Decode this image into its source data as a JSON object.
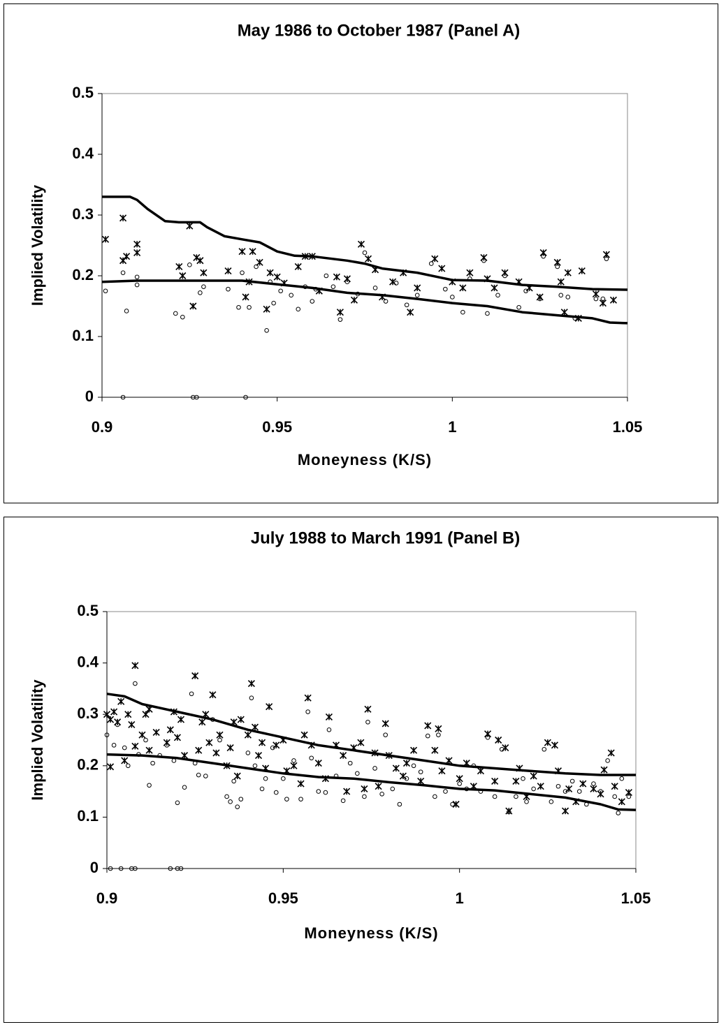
{
  "chart_data": [
    {
      "type": "scatter",
      "title": "May 1986 to October 1987 (Panel A)",
      "xlabel": "Moneyness (K/S)",
      "ylabel": "Implied Volatility",
      "xlim": [
        0.9,
        1.05
      ],
      "ylim": [
        0,
        0.5
      ],
      "xticks": [
        0.9,
        0.95,
        1,
        1.05
      ],
      "yticks": [
        0,
        0.1,
        0.2,
        0.3,
        0.4,
        0.5
      ],
      "series": [
        {
          "style": "asterisk",
          "color": "#000000",
          "x": [
            0.901,
            0.906,
            0.906,
            0.907,
            0.91,
            0.91,
            0.922,
            0.923,
            0.925,
            0.926,
            0.927,
            0.928,
            0.929,
            0.936,
            0.94,
            0.941,
            0.942,
            0.943,
            0.945,
            0.947,
            0.948,
            0.95,
            0.952,
            0.956,
            0.958,
            0.96,
            0.962,
            0.967,
            0.968,
            0.97,
            0.972,
            0.974,
            0.976,
            0.978,
            0.98,
            0.983,
            0.986,
            0.988,
            0.99,
            0.995,
            0.997,
            1.0,
            1.003,
            1.005,
            1.009,
            1.01,
            1.012,
            1.015,
            1.019,
            1.022,
            1.025,
            1.026,
            1.03,
            1.031,
            1.032,
            1.033,
            1.036,
            1.037,
            1.041,
            1.043,
            1.044,
            1.046
          ],
          "values": [
            0.26,
            0.295,
            0.225,
            0.232,
            0.252,
            0.238,
            0.215,
            0.2,
            0.282,
            0.15,
            0.23,
            0.225,
            0.205,
            0.208,
            0.24,
            0.165,
            0.19,
            0.24,
            0.222,
            0.145,
            0.205,
            0.198,
            0.188,
            0.215,
            0.232,
            0.232,
            0.175,
            0.198,
            0.14,
            0.195,
            0.16,
            0.252,
            0.228,
            0.21,
            0.165,
            0.19,
            0.205,
            0.14,
            0.18,
            0.228,
            0.212,
            0.19,
            0.18,
            0.205,
            0.23,
            0.195,
            0.18,
            0.205,
            0.19,
            0.18,
            0.165,
            0.238,
            0.222,
            0.19,
            0.14,
            0.205,
            0.13,
            0.208,
            0.17,
            0.155,
            0.235,
            0.16
          ]
        },
        {
          "style": "circle",
          "color": "#000000",
          "x": [
            0.901,
            0.906,
            0.907,
            0.906,
            0.91,
            0.91,
            0.921,
            0.923,
            0.925,
            0.926,
            0.927,
            0.928,
            0.929,
            0.936,
            0.939,
            0.94,
            0.941,
            0.942,
            0.944,
            0.947,
            0.948,
            0.949,
            0.951,
            0.954,
            0.956,
            0.958,
            0.96,
            0.961,
            0.964,
            0.966,
            0.968,
            0.97,
            0.973,
            0.975,
            0.978,
            0.981,
            0.984,
            0.987,
            0.99,
            0.994,
            0.998,
            1.0,
            1.003,
            1.005,
            1.009,
            1.01,
            1.013,
            1.015,
            1.019,
            1.021,
            1.025,
            1.026,
            1.03,
            1.031,
            1.033,
            1.035,
            1.041,
            1.043,
            1.044
          ],
          "values": [
            0.175,
            0,
            0.142,
            0.205,
            0.185,
            0.198,
            0.138,
            0.132,
            0.218,
            0,
            0,
            0.172,
            0.182,
            0.178,
            0.148,
            0.205,
            0,
            0.148,
            0.215,
            0.11,
            0.19,
            0.155,
            0.175,
            0.168,
            0.145,
            0.182,
            0.158,
            0.178,
            0.2,
            0.182,
            0.128,
            0.19,
            0.17,
            0.238,
            0.18,
            0.158,
            0.188,
            0.152,
            0.168,
            0.22,
            0.178,
            0.165,
            0.14,
            0.195,
            0.225,
            0.138,
            0.168,
            0.2,
            0.148,
            0.175,
            0.162,
            0.232,
            0.215,
            0.168,
            0.165,
            0.13,
            0.162,
            0.162,
            0.228
          ]
        },
        {
          "style": "line",
          "color": "#000000",
          "x": [
            0.9,
            0.908,
            0.91,
            0.913,
            0.918,
            0.922,
            0.928,
            0.93,
            0.935,
            0.94,
            0.945,
            0.95,
            0.955,
            0.96,
            0.97,
            0.975,
            0.98,
            0.99,
            1.0,
            1.01,
            1.02,
            1.03,
            1.04,
            1.05
          ],
          "values": [
            0.33,
            0.33,
            0.325,
            0.31,
            0.29,
            0.288,
            0.288,
            0.28,
            0.265,
            0.26,
            0.255,
            0.24,
            0.233,
            0.232,
            0.225,
            0.22,
            0.212,
            0.205,
            0.193,
            0.192,
            0.185,
            0.182,
            0.178,
            0.177
          ]
        },
        {
          "style": "line",
          "color": "#000000",
          "x": [
            0.9,
            0.91,
            0.94,
            0.96,
            0.97,
            0.98,
            0.99,
            1.0,
            1.01,
            1.02,
            1.03,
            1.04,
            1.045,
            1.05
          ],
          "values": [
            0.19,
            0.192,
            0.192,
            0.18,
            0.172,
            0.168,
            0.162,
            0.155,
            0.15,
            0.14,
            0.135,
            0.13,
            0.123,
            0.122
          ]
        }
      ]
    },
    {
      "type": "scatter",
      "title": "July 1988 to March 1991 (Panel B)",
      "xlabel": "Moneyness (K/S)",
      "ylabel": "Implied Volatility",
      "xlim": [
        0.9,
        1.05
      ],
      "ylim": [
        0,
        0.5
      ],
      "xticks": [
        0.9,
        0.95,
        1,
        1.05
      ],
      "yticks": [
        0,
        0.1,
        0.2,
        0.3,
        0.4,
        0.5
      ],
      "series": [
        {
          "style": "asterisk",
          "color": "#000000",
          "x": [
            0.9,
            0.901,
            0.901,
            0.902,
            0.903,
            0.904,
            0.905,
            0.906,
            0.907,
            0.908,
            0.908,
            0.91,
            0.911,
            0.912,
            0.912,
            0.914,
            0.917,
            0.918,
            0.919,
            0.92,
            0.921,
            0.922,
            0.925,
            0.926,
            0.927,
            0.928,
            0.929,
            0.93,
            0.931,
            0.932,
            0.934,
            0.935,
            0.936,
            0.937,
            0.938,
            0.94,
            0.941,
            0.942,
            0.943,
            0.944,
            0.945,
            0.946,
            0.948,
            0.95,
            0.951,
            0.953,
            0.955,
            0.956,
            0.957,
            0.958,
            0.96,
            0.962,
            0.963,
            0.965,
            0.967,
            0.968,
            0.97,
            0.972,
            0.973,
            0.974,
            0.976,
            0.977,
            0.979,
            0.98,
            0.982,
            0.984,
            0.985,
            0.987,
            0.989,
            0.991,
            0.993,
            0.994,
            0.995,
            0.997,
            0.999,
            1.0,
            1.002,
            1.004,
            1.006,
            1.008,
            1.01,
            1.011,
            1.013,
            1.014,
            1.016,
            1.017,
            1.019,
            1.021,
            1.023,
            1.025,
            1.027,
            1.028,
            1.03,
            1.031,
            1.033,
            1.035,
            1.038,
            1.04,
            1.041,
            1.043,
            1.044,
            1.046,
            1.048
          ],
          "values": [
            0.3,
            0.198,
            0.29,
            0.305,
            0.285,
            0.325,
            0.21,
            0.3,
            0.28,
            0.395,
            0.238,
            0.26,
            0.3,
            0.31,
            0.23,
            0.265,
            0.245,
            0.27,
            0.305,
            0.255,
            0.29,
            0.22,
            0.375,
            0.23,
            0.285,
            0.3,
            0.245,
            0.338,
            0.225,
            0.26,
            0.2,
            0.235,
            0.285,
            0.18,
            0.29,
            0.26,
            0.36,
            0.275,
            0.22,
            0.245,
            0.195,
            0.315,
            0.24,
            0.25,
            0.19,
            0.2,
            0.165,
            0.26,
            0.332,
            0.24,
            0.205,
            0.175,
            0.295,
            0.24,
            0.22,
            0.15,
            0.235,
            0.245,
            0.155,
            0.31,
            0.225,
            0.16,
            0.282,
            0.22,
            0.195,
            0.18,
            0.205,
            0.23,
            0.17,
            0.278,
            0.23,
            0.272,
            0.19,
            0.21,
            0.125,
            0.175,
            0.205,
            0.16,
            0.19,
            0.262,
            0.17,
            0.25,
            0.235,
            0.112,
            0.17,
            0.195,
            0.14,
            0.18,
            0.16,
            0.245,
            0.24,
            0.19,
            0.112,
            0.155,
            0.13,
            0.165,
            0.155,
            0.145,
            0.192,
            0.225,
            0.16,
            0.13,
            0.148
          ]
        },
        {
          "style": "circle",
          "color": "#000000",
          "x": [
            0.9,
            0.901,
            0.902,
            0.903,
            0.904,
            0.905,
            0.906,
            0.907,
            0.908,
            0.908,
            0.909,
            0.911,
            0.912,
            0.913,
            0.915,
            0.917,
            0.918,
            0.919,
            0.92,
            0.92,
            0.921,
            0.922,
            0.924,
            0.925,
            0.926,
            0.928,
            0.93,
            0.932,
            0.934,
            0.935,
            0.936,
            0.937,
            0.938,
            0.94,
            0.941,
            0.942,
            0.944,
            0.945,
            0.947,
            0.948,
            0.95,
            0.951,
            0.953,
            0.955,
            0.957,
            0.958,
            0.96,
            0.962,
            0.963,
            0.965,
            0.967,
            0.969,
            0.971,
            0.973,
            0.974,
            0.976,
            0.978,
            0.979,
            0.981,
            0.983,
            0.985,
            0.987,
            0.989,
            0.991,
            0.993,
            0.994,
            0.996,
            0.998,
            1.0,
            1.002,
            1.004,
            1.006,
            1.008,
            1.01,
            1.012,
            1.014,
            1.016,
            1.018,
            1.019,
            1.021,
            1.024,
            1.026,
            1.028,
            1.03,
            1.032,
            1.034,
            1.036,
            1.038,
            1.04,
            1.042,
            1.044,
            1.045,
            1.046,
            1.048
          ],
          "values": [
            0.26,
            0,
            0.24,
            0.28,
            0,
            0.235,
            0.2,
            0,
            0.36,
            0,
            0.222,
            0.25,
            0.162,
            0.205,
            0.22,
            0.24,
            0,
            0.21,
            0,
            0.128,
            0,
            0.158,
            0.34,
            0.205,
            0.182,
            0.18,
            0.29,
            0.25,
            0.14,
            0.13,
            0.17,
            0.12,
            0.135,
            0.225,
            0.332,
            0.2,
            0.155,
            0.175,
            0.235,
            0.148,
            0.175,
            0.135,
            0.21,
            0.135,
            0.305,
            0.215,
            0.15,
            0.148,
            0.27,
            0.18,
            0.132,
            0.205,
            0.185,
            0.14,
            0.285,
            0.195,
            0.145,
            0.26,
            0.155,
            0.125,
            0.175,
            0.2,
            0.188,
            0.258,
            0.14,
            0.26,
            0.15,
            0.125,
            0.165,
            0.155,
            0.2,
            0.15,
            0.255,
            0.14,
            0.232,
            0.11,
            0.14,
            0.175,
            0.13,
            0.155,
            0.232,
            0.13,
            0.16,
            0.15,
            0.17,
            0.15,
            0.125,
            0.165,
            0.15,
            0.21,
            0.14,
            0.108,
            0.175,
            0.14
          ]
        },
        {
          "style": "line",
          "color": "#000000",
          "x": [
            0.9,
            0.905,
            0.91,
            0.92,
            0.93,
            0.94,
            0.95,
            0.96,
            0.97,
            0.98,
            0.99,
            1.0,
            1.01,
            1.02,
            1.03,
            1.04,
            1.05
          ],
          "values": [
            0.34,
            0.335,
            0.32,
            0.305,
            0.29,
            0.27,
            0.255,
            0.24,
            0.23,
            0.22,
            0.21,
            0.2,
            0.195,
            0.19,
            0.185,
            0.182,
            0.182
          ]
        },
        {
          "style": "line",
          "color": "#000000",
          "x": [
            0.9,
            0.91,
            0.92,
            0.93,
            0.94,
            0.95,
            0.96,
            0.97,
            0.98,
            0.99,
            1.0,
            1.01,
            1.02,
            1.03,
            1.04,
            1.045,
            1.05
          ],
          "values": [
            0.222,
            0.22,
            0.215,
            0.205,
            0.195,
            0.185,
            0.178,
            0.175,
            0.168,
            0.162,
            0.155,
            0.152,
            0.145,
            0.138,
            0.125,
            0.115,
            0.114
          ]
        }
      ]
    }
  ]
}
